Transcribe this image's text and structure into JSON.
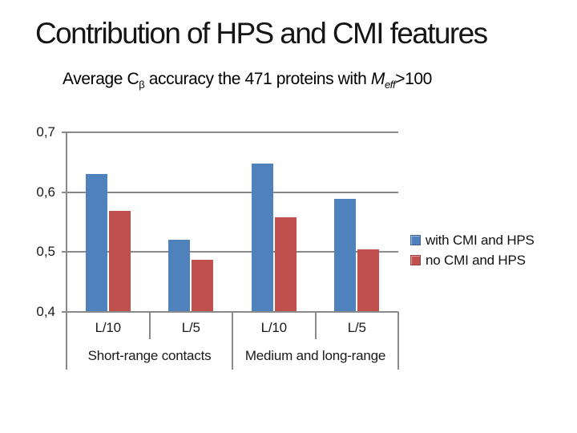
{
  "slide": {
    "title": "Contribution of HPS and CMI features",
    "subtitle": {
      "part1": "Average C",
      "sub1": "β",
      "part2": " accuracy the 471 proteins with ",
      "italic_m": "M",
      "sub_italic": "eff",
      "part3": ">100"
    }
  },
  "chart_data": {
    "type": "bar",
    "title": "Average Cβ accuracy the 471 proteins with Meff>100",
    "categories": [
      "L/10",
      "L/5",
      "L/10",
      "L/5"
    ],
    "group_labels": [
      "Short-range contacts",
      "Medium and long-range"
    ],
    "series": [
      {
        "name": "with CMI and HPS",
        "color": "#4F81BD",
        "values": [
          0.63,
          0.52,
          0.648,
          0.589
        ]
      },
      {
        "name": "no CMI and HPS",
        "color": "#C0504D",
        "values": [
          0.569,
          0.487,
          0.558,
          0.505
        ]
      }
    ],
    "ylim": [
      0.4,
      0.7
    ],
    "yticks": [
      {
        "value": 0.7,
        "label": "0,7"
      },
      {
        "value": 0.6,
        "label": "0,6"
      },
      {
        "value": 0.5,
        "label": "0,5"
      },
      {
        "value": 0.4,
        "label": "0,4"
      }
    ],
    "grid": true,
    "legend_position": "right",
    "axis_color": "#8a8a8a"
  }
}
